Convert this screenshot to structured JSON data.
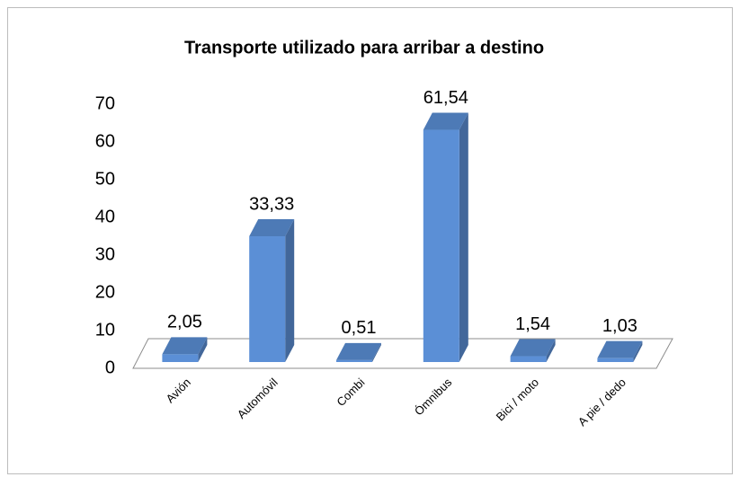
{
  "chart_data": {
    "type": "bar3d",
    "title": "Transporte utilizado para arribar a destino",
    "categories": [
      "Avión",
      "Automóvil",
      "Combi",
      "Ómnibus",
      "Bici / moto",
      "A pie / dedo"
    ],
    "values": [
      2.05,
      33.33,
      0.51,
      61.54,
      1.54,
      1.03
    ],
    "value_labels": [
      "2,05",
      "33,33",
      "0,51",
      "61,54",
      "1,54",
      "1,03"
    ],
    "color": "#5b8fd6",
    "ylim": [
      0,
      70
    ],
    "yticks": [
      0,
      10,
      20,
      30,
      40,
      50,
      60,
      70
    ],
    "grid": false
  }
}
